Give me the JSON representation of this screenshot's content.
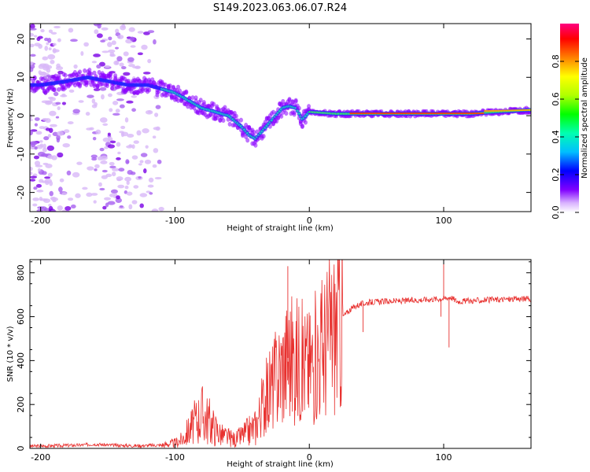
{
  "title": "S149.2023.063.06.07.R24",
  "chart_data": [
    {
      "type": "heatmap",
      "name": "spectrogram",
      "xlabel": "Height of straight line (km)",
      "ylabel": "Frequency (Hz)",
      "xlim": [
        -208,
        165
      ],
      "ylim": [
        -25,
        24
      ],
      "xticks": [
        -200,
        -100,
        0,
        100
      ],
      "yticks": [
        -20,
        -10,
        0,
        10,
        20
      ],
      "colorbar": {
        "label": "Normalized spectral amplitude",
        "range": [
          0,
          1
        ],
        "ticks": [
          "0.0",
          "0.2",
          "0.4",
          "0.6",
          "0.8"
        ]
      },
      "ridge": {
        "x": [
          -200,
          -180,
          -165,
          -150,
          -135,
          -120,
          -110,
          -100,
          -90,
          -80,
          -70,
          -60,
          -50,
          -45,
          -40,
          -35,
          -30,
          -25,
          -20,
          -15,
          -10,
          -5,
          0,
          20,
          40,
          60,
          80,
          100,
          120,
          140,
          165
        ],
        "y": [
          8,
          9,
          10,
          9,
          8,
          8,
          7,
          6,
          4,
          2,
          1,
          0,
          -3,
          -5,
          -6,
          -4,
          -2,
          0,
          2,
          2.5,
          2,
          -1,
          1,
          0.5,
          0.5,
          0.5,
          0.5,
          0.5,
          0.5,
          1,
          1.5
        ]
      }
    },
    {
      "type": "line",
      "name": "snr",
      "xlabel": "Height of straight line (km)",
      "ylabel": "SNR (10 * v/v)",
      "xlim": [
        -208,
        165
      ],
      "ylim": [
        0,
        860
      ],
      "xticks": [
        -200,
        -100,
        0,
        100
      ],
      "yticks": [
        0,
        200,
        400,
        600,
        800
      ],
      "color": "#e8312f",
      "series": [
        {
          "name": "SNR",
          "x": [
            -208,
            -190,
            -170,
            -160,
            -150,
            -130,
            -110,
            -100,
            -95,
            -90,
            -85,
            -80,
            -75,
            -70,
            -65,
            -60,
            -55,
            -50,
            -45,
            -40,
            -35,
            -30,
            -25,
            -20,
            -15,
            -10,
            -5,
            0,
            5,
            10,
            15,
            20,
            25,
            30,
            35,
            40,
            45,
            50,
            60,
            70,
            80,
            90,
            100,
            105,
            110,
            120,
            130,
            140,
            150,
            160,
            165
          ],
          "y": [
            10,
            12,
            15,
            20,
            15,
            12,
            15,
            25,
            40,
            80,
            120,
            160,
            130,
            90,
            60,
            50,
            40,
            60,
            80,
            100,
            200,
            260,
            320,
            380,
            420,
            410,
            390,
            380,
            420,
            470,
            520,
            560,
            600,
            630,
            650,
            660,
            665,
            668,
            670,
            672,
            675,
            680,
            682,
            690,
            670,
            672,
            675,
            678,
            680,
            682,
            680
          ]
        }
      ]
    }
  ]
}
